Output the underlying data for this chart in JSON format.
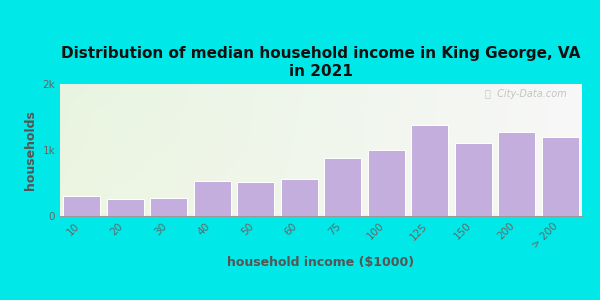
{
  "title": "Distribution of median household income in King George, VA\nin 2021",
  "xlabel": "household income ($1000)",
  "ylabel": "households",
  "categories": [
    "10",
    "20",
    "30",
    "40",
    "50",
    "60",
    "75",
    "100",
    "125",
    "150",
    "200",
    "> 200"
  ],
  "values": [
    300,
    255,
    270,
    530,
    510,
    555,
    875,
    1000,
    1380,
    1100,
    1270,
    1200
  ],
  "bar_color": "#c3aedd",
  "bar_edge_color": "#ffffff",
  "ylim": [
    0,
    2000
  ],
  "yticks": [
    0,
    1000,
    2000
  ],
  "ytick_labels": [
    "0",
    "1k",
    "2k"
  ],
  "bg_color": "#00e8e8",
  "title_fontsize": 11,
  "axis_label_fontsize": 9,
  "tick_fontsize": 7.5,
  "watermark_text": "ⓘ  City-Data.com"
}
